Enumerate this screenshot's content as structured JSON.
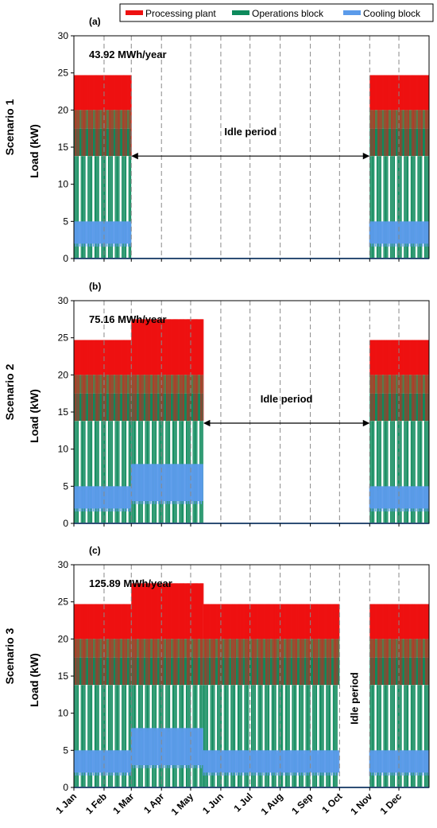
{
  "legend": {
    "position": "top-right",
    "items": [
      {
        "label": "Processing plant",
        "color": "#ee1111"
      },
      {
        "label": "Operations block",
        "color": "#0e8a5c"
      },
      {
        "label": "Cooling block",
        "color": "#5b9bea"
      }
    ]
  },
  "month_labels": [
    "1 Jan",
    "1 Feb",
    "1 Mar",
    "1 Apr",
    "1 May",
    "1 Jun",
    "1 Jul",
    "1 Aug",
    "1 Sep",
    "1 Oct",
    "1 Nov",
    "1 Dec"
  ],
  "colors": {
    "processing": "#ee1111",
    "operations": "#0e8a5c",
    "operations_band": "#5a7a4a",
    "cooling": "#5b9bea",
    "grid": "#8a8a8a",
    "arrow": "#000000"
  },
  "chart_data": [
    {
      "type": "area",
      "panel_label": "(a)",
      "row_label": "Scenario 1",
      "ylabel": "Load (kW)",
      "annotation": "43.92 MWh/year",
      "ylim": [
        0,
        30
      ],
      "yticks": [
        0,
        5,
        10,
        15,
        20,
        25,
        30
      ],
      "x_unit": "day of year",
      "xlim": [
        0,
        365
      ],
      "grid": "vertical dashed lines at month starts",
      "active_periods": [
        {
          "start_day": 0,
          "end_day": 59,
          "processing_peak": 24.7,
          "operations_peak": 20.0,
          "operations_base": 13.8,
          "cooling_peak": 5.0,
          "cooling_base": 2.0
        },
        {
          "start_day": 304,
          "end_day": 365,
          "processing_peak": 24.7,
          "operations_peak": 20.0,
          "operations_base": 13.8,
          "cooling_peak": 5.0,
          "cooling_base": 2.0
        }
      ],
      "idle": {
        "label": "Idle period",
        "start_day": 59,
        "end_day": 304,
        "y": 13.8,
        "orientation": "horizontal"
      }
    },
    {
      "type": "area",
      "panel_label": "(b)",
      "row_label": "Scenario 2",
      "ylabel": "Load (kW)",
      "annotation": "75.16 MWh/year",
      "ylim": [
        0,
        30
      ],
      "yticks": [
        0,
        5,
        10,
        15,
        20,
        25,
        30
      ],
      "x_unit": "day of year",
      "xlim": [
        0,
        365
      ],
      "grid": "vertical dashed lines at month starts",
      "active_periods": [
        {
          "start_day": 0,
          "end_day": 59,
          "processing_peak": 24.7,
          "operations_peak": 20.0,
          "operations_base": 13.8,
          "cooling_peak": 5.0,
          "cooling_base": 2.0
        },
        {
          "start_day": 59,
          "end_day": 133,
          "processing_peak": 27.5,
          "operations_peak": 20.0,
          "operations_base": 13.8,
          "cooling_peak": 8.0,
          "cooling_base": 3.0
        },
        {
          "start_day": 304,
          "end_day": 365,
          "processing_peak": 24.7,
          "operations_peak": 20.0,
          "operations_base": 13.8,
          "cooling_peak": 5.0,
          "cooling_base": 2.0
        }
      ],
      "idle": {
        "label": "Idle period",
        "start_day": 133,
        "end_day": 304,
        "y": 13.5,
        "orientation": "horizontal"
      }
    },
    {
      "type": "area",
      "panel_label": "(c)",
      "row_label": "Scenario 3",
      "ylabel": "Load (kW)",
      "annotation": "125.89 MWh/year",
      "ylim": [
        0,
        30
      ],
      "yticks": [
        0,
        5,
        10,
        15,
        20,
        25,
        30
      ],
      "x_unit": "day of year",
      "xlim": [
        0,
        365
      ],
      "grid": "vertical dashed lines at month starts",
      "active_periods": [
        {
          "start_day": 0,
          "end_day": 59,
          "processing_peak": 24.7,
          "operations_peak": 20.0,
          "operations_base": 13.8,
          "cooling_peak": 5.0,
          "cooling_base": 2.0
        },
        {
          "start_day": 59,
          "end_day": 133,
          "processing_peak": 27.5,
          "operations_peak": 20.0,
          "operations_base": 13.8,
          "cooling_peak": 8.0,
          "cooling_base": 3.0
        },
        {
          "start_day": 133,
          "end_day": 273,
          "processing_peak": 24.7,
          "operations_peak": 20.0,
          "operations_base": 13.8,
          "cooling_peak": 5.0,
          "cooling_base": 2.0
        },
        {
          "start_day": 304,
          "end_day": 365,
          "processing_peak": 24.7,
          "operations_peak": 20.0,
          "operations_base": 13.8,
          "cooling_peak": 5.0,
          "cooling_base": 2.0
        }
      ],
      "idle": {
        "label": "Idle period",
        "start_day": 273,
        "end_day": 304,
        "y": 12.0,
        "orientation": "vertical"
      }
    }
  ]
}
